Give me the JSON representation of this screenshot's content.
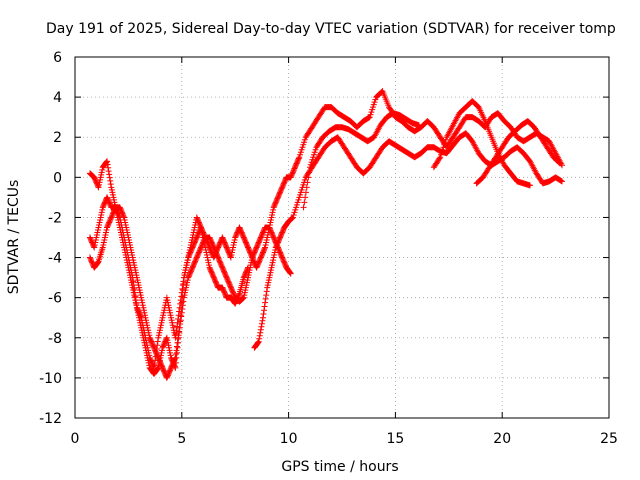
{
  "chart_data": {
    "type": "scatter",
    "title": "Day 191 of 2025, Sidereal Day-to-day VTEC variation (SDTVAR) for receiver tomp",
    "xlabel": "GPS time / hours",
    "ylabel": "SDTVAR / TECUs",
    "xlim": [
      0,
      25
    ],
    "ylim": [
      -12,
      6
    ],
    "xticks": [
      0,
      5,
      10,
      15,
      20,
      25
    ],
    "yticks": [
      -12,
      -10,
      -8,
      -6,
      -4,
      -2,
      0,
      2,
      4,
      6
    ],
    "grid": true,
    "marker": "+",
    "color": "#ff0000",
    "series": [
      {
        "x": [
          0.7,
          0.9,
          1.1,
          1.3,
          1.5,
          1.7,
          1.9,
          2.1,
          2.3,
          2.5,
          2.7,
          2.9,
          3.1,
          3.3,
          3.5,
          3.7,
          3.9,
          4.1,
          4.3,
          4.5,
          4.7,
          4.9,
          5.1,
          5.3,
          5.5,
          5.7,
          5.9,
          6.1,
          6.3,
          6.5,
          6.7,
          6.9,
          7.1,
          7.3,
          7.5,
          7.7,
          7.9,
          8.1,
          8.3,
          8.5,
          8.7,
          8.9,
          9.1,
          9.3,
          9.5,
          9.7,
          9.9,
          10.1,
          10.3,
          10.5,
          10.8,
          11.1,
          11.4,
          11.7,
          12.0,
          12.3,
          12.6,
          12.9,
          13.2,
          13.5,
          13.8,
          14.1,
          14.4,
          14.7,
          15.0,
          15.3,
          15.6,
          15.9,
          16.2,
          16.5,
          16.8,
          17.1,
          17.4,
          17.7,
          18.0,
          18.3,
          18.6,
          18.9,
          19.2,
          19.5,
          19.8,
          20.1,
          20.4,
          20.7,
          21.0,
          21.3,
          21.6,
          21.9,
          22.2,
          22.5,
          22.8
        ],
        "y": [
          0.2,
          0.0,
          -0.5,
          0.5,
          0.8,
          -0.5,
          -1.5,
          -2.0,
          -3.0,
          -4.0,
          -5.0,
          -6.5,
          -7.5,
          -8.5,
          -9.5,
          -9.8,
          -9.5,
          -8.5,
          -8.0,
          -9.0,
          -9.5,
          -7.5,
          -5.0,
          -4.0,
          -3.5,
          -3.0,
          -2.5,
          -3.0,
          -3.5,
          -4.0,
          -3.5,
          -3.0,
          -3.5,
          -4.0,
          -3.0,
          -2.5,
          -3.0,
          -3.5,
          -4.0,
          -4.5,
          -4.0,
          -3.5,
          -2.5,
          -1.5,
          -1.0,
          -0.5,
          0.0,
          0.0,
          0.5,
          1.0,
          2.0,
          2.5,
          3.0,
          3.5,
          3.5,
          3.2,
          3.0,
          2.8,
          2.5,
          2.8,
          3.0,
          4.0,
          4.3,
          3.5,
          3.0,
          2.8,
          2.5,
          2.3,
          2.5,
          2.8,
          2.5,
          2.0,
          1.5,
          2.0,
          2.5,
          3.0,
          3.0,
          2.8,
          2.5,
          3.0,
          3.2,
          2.8,
          2.5,
          2.0,
          1.8,
          2.0,
          2.2,
          2.0,
          1.8,
          1.2,
          0.6
        ]
      },
      {
        "x": [
          0.7,
          0.9,
          1.1,
          1.3,
          1.5,
          1.7,
          1.9,
          2.1,
          2.3,
          2.5,
          2.7,
          2.9,
          3.1,
          3.3,
          3.5,
          3.7,
          3.9,
          4.1,
          4.3,
          4.5,
          4.7,
          4.9,
          5.1,
          5.3,
          5.5,
          5.7,
          5.9,
          6.1,
          6.3,
          6.5,
          6.7,
          6.9,
          7.1,
          7.3,
          7.5,
          7.7,
          7.9,
          8.1
        ],
        "y": [
          -3.0,
          -3.5,
          -2.5,
          -1.5,
          -1.0,
          -1.5,
          -1.5,
          -2.5,
          -3.5,
          -4.5,
          -5.5,
          -6.5,
          -7.0,
          -8.0,
          -9.0,
          -9.5,
          -8.0,
          -7.0,
          -6.0,
          -7.0,
          -8.0,
          -6.5,
          -5.0,
          -4.0,
          -3.0,
          -2.0,
          -2.5,
          -3.5,
          -4.5,
          -5.0,
          -5.5,
          -5.5,
          -6.0,
          -6.0,
          -6.3,
          -5.8,
          -5.0,
          -4.5
        ]
      },
      {
        "x": [
          0.7,
          0.9,
          1.1,
          1.3,
          1.5,
          1.7,
          1.9,
          2.1,
          2.3,
          2.5,
          2.7,
          2.9,
          3.1,
          3.3,
          3.5,
          3.7,
          3.9,
          4.1,
          4.3,
          4.5,
          4.7,
          4.9,
          5.1,
          5.3,
          5.5,
          5.7,
          5.9,
          6.1,
          6.3,
          6.5,
          6.7,
          6.9,
          7.1,
          7.3,
          7.5,
          7.7,
          7.9,
          8.1,
          8.3,
          8.5,
          8.7,
          8.9,
          9.1,
          9.3,
          9.5,
          9.7,
          9.9,
          10.1
        ],
        "y": [
          -4.0,
          -4.5,
          -4.2,
          -3.5,
          -2.5,
          -2.0,
          -1.5,
          -1.5,
          -2.0,
          -3.0,
          -4.0,
          -5.0,
          -6.0,
          -7.0,
          -8.0,
          -8.5,
          -9.0,
          -9.5,
          -10.0,
          -9.5,
          -9.0,
          -7.5,
          -6.0,
          -5.0,
          -4.5,
          -4.0,
          -3.5,
          -3.0,
          -3.0,
          -3.5,
          -4.0,
          -4.5,
          -5.0,
          -5.5,
          -6.0,
          -6.2,
          -6.0,
          -5.0,
          -4.0,
          -3.5,
          -3.0,
          -2.5,
          -2.5,
          -3.0,
          -3.5,
          -4.0,
          -4.5,
          -4.8
        ]
      },
      {
        "x": [
          8.4,
          8.6,
          8.8,
          9.0,
          9.2,
          9.4,
          9.6,
          9.8,
          10.0,
          10.2,
          10.5,
          10.8,
          11.1,
          11.4,
          11.7,
          12.0,
          12.3,
          12.6,
          12.9,
          13.2,
          13.5,
          13.8,
          14.1,
          14.4,
          14.7,
          15.0,
          15.3,
          15.6,
          15.9,
          16.2,
          16.5,
          16.8,
          17.1,
          17.4,
          17.7,
          18.0,
          18.3,
          18.6,
          18.9,
          19.2,
          19.5,
          19.8,
          20.1,
          20.4,
          20.7,
          21.0,
          21.3,
          21.6,
          21.9,
          22.2,
          22.5,
          22.8
        ],
        "y": [
          -8.5,
          -8.2,
          -7.0,
          -5.5,
          -4.5,
          -3.5,
          -3.0,
          -2.5,
          -2.2,
          -2.0,
          -1.0,
          0.0,
          0.5,
          1.0,
          1.5,
          1.8,
          2.0,
          1.5,
          1.0,
          0.5,
          0.2,
          0.5,
          1.0,
          1.5,
          1.8,
          1.6,
          1.4,
          1.2,
          1.0,
          1.2,
          1.5,
          1.5,
          1.3,
          1.2,
          1.6,
          2.0,
          2.2,
          1.8,
          1.2,
          0.8,
          0.6,
          0.8,
          1.0,
          1.3,
          1.5,
          1.2,
          0.8,
          0.2,
          -0.3,
          -0.2,
          0.0,
          -0.2
        ]
      },
      {
        "x": [
          16.8,
          17.1,
          17.4,
          17.7,
          18.0,
          18.3,
          18.6,
          18.9,
          19.2,
          19.5,
          19.8,
          20.1,
          20.4,
          20.7,
          21.0,
          21.3
        ],
        "y": [
          0.5,
          1.0,
          2.0,
          2.6,
          3.2,
          3.5,
          3.8,
          3.5,
          2.8,
          2.0,
          1.2,
          0.6,
          0.2,
          -0.2,
          -0.3,
          -0.4
        ]
      },
      {
        "x": [
          18.8,
          19.1,
          19.4,
          19.7,
          20.0,
          20.3,
          20.6,
          20.9,
          21.2,
          21.5,
          21.8,
          22.1,
          22.4,
          22.7
        ],
        "y": [
          -0.3,
          0.0,
          0.5,
          1.0,
          1.5,
          2.0,
          2.3,
          2.6,
          2.8,
          2.5,
          2.0,
          1.5,
          1.0,
          0.7
        ]
      },
      {
        "x": [
          10.7,
          11.0,
          11.3,
          11.6,
          11.9,
          12.2,
          12.5,
          12.8,
          13.1,
          13.4,
          13.7,
          14.0,
          14.3,
          14.6,
          14.9,
          15.2,
          15.5,
          15.8,
          16.1
        ],
        "y": [
          -1.5,
          0.5,
          1.5,
          2.0,
          2.3,
          2.5,
          2.5,
          2.4,
          2.2,
          2.0,
          1.8,
          2.0,
          2.6,
          3.0,
          3.2,
          3.1,
          2.9,
          2.7,
          2.6
        ]
      }
    ]
  }
}
